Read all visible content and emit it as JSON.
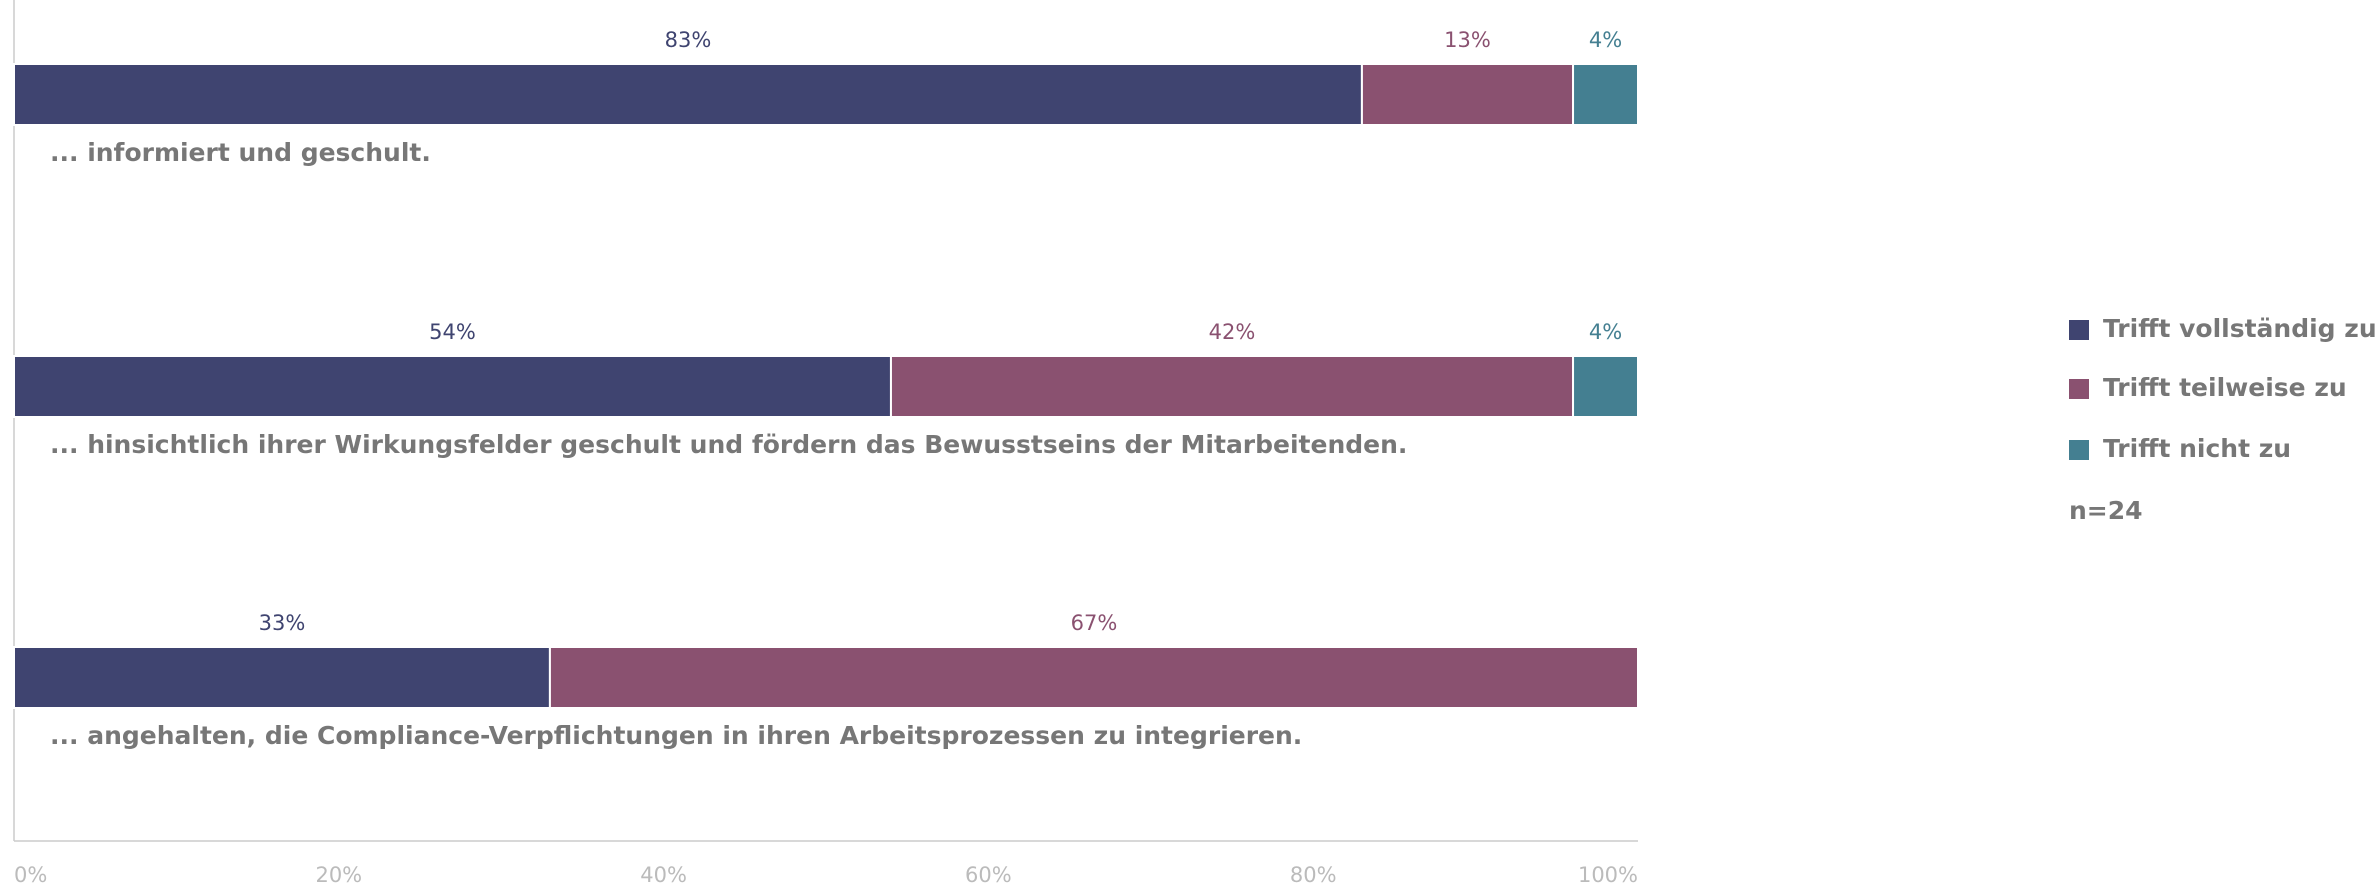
{
  "chart_data": {
    "type": "stacked-bar-horizontal",
    "categories": [
      "... informiert und geschult.",
      "... hinsichtlich ihrer Wirkungsfelder geschult und fördern das Bewusstseins der Mitarbeitenden.",
      "... angehalten, die Compliance-Verpflichtungen in ihren Arbeitsprozessen zu integrieren."
    ],
    "series": [
      {
        "name": "Trifft vollständig zu",
        "color": "#3f4470",
        "values": [
          83,
          54,
          33
        ],
        "value_labels": [
          "83%",
          "54%",
          "33%"
        ]
      },
      {
        "name": "Trifft teilweise zu",
        "color": "#8a5170",
        "values": [
          13,
          42,
          67
        ],
        "value_labels": [
          "13%",
          "42%",
          "67%"
        ]
      },
      {
        "name": "Trifft nicht zu",
        "color": "#447f91",
        "values": [
          4,
          4,
          null
        ],
        "value_labels": [
          "4%",
          "4%",
          null
        ]
      }
    ],
    "note": "n=24",
    "xlim": [
      0,
      100
    ],
    "xticks": [
      {
        "value": 0,
        "label": "0%"
      },
      {
        "value": 20,
        "label": "20%"
      },
      {
        "value": 40,
        "label": "40%"
      },
      {
        "value": 60,
        "label": "60%"
      },
      {
        "value": 80,
        "label": "80%"
      },
      {
        "value": 100,
        "label": "100%"
      }
    ],
    "legend": "right"
  }
}
